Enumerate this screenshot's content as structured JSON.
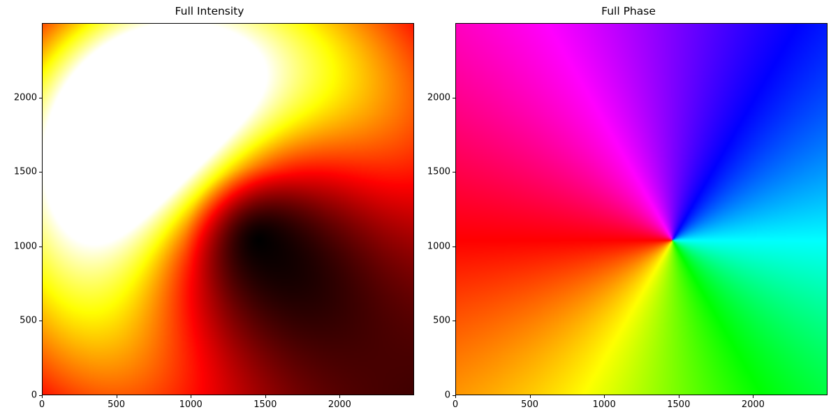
{
  "chart_data": [
    {
      "type": "heatmap",
      "title": "Full Intensity",
      "colormap": "hot",
      "description_colors": {
        "low": "#000000",
        "mid": "#ff0000",
        "high": "#ffffff"
      },
      "xlim": [
        0,
        2500
      ],
      "ylim": [
        0,
        2500
      ],
      "xticks": [
        "0",
        "500",
        "1000",
        "1500",
        "2000"
      ],
      "yticks": [
        "0",
        "500",
        "1000",
        "1500",
        "2000"
      ],
      "vortex_center": [
        1460,
        1040
      ],
      "peak_intensity_center": [
        720,
        1800
      ]
    },
    {
      "type": "heatmap",
      "title": "Full Phase",
      "colormap": "hsv",
      "xlim": [
        0,
        2500
      ],
      "ylim": [
        0,
        2500
      ],
      "xticks": [
        "0",
        "500",
        "1000",
        "1500",
        "2000"
      ],
      "yticks": [
        "0",
        "500",
        "1000",
        "1500",
        "2000"
      ],
      "phase_singularity": [
        1460,
        1040
      ]
    }
  ]
}
